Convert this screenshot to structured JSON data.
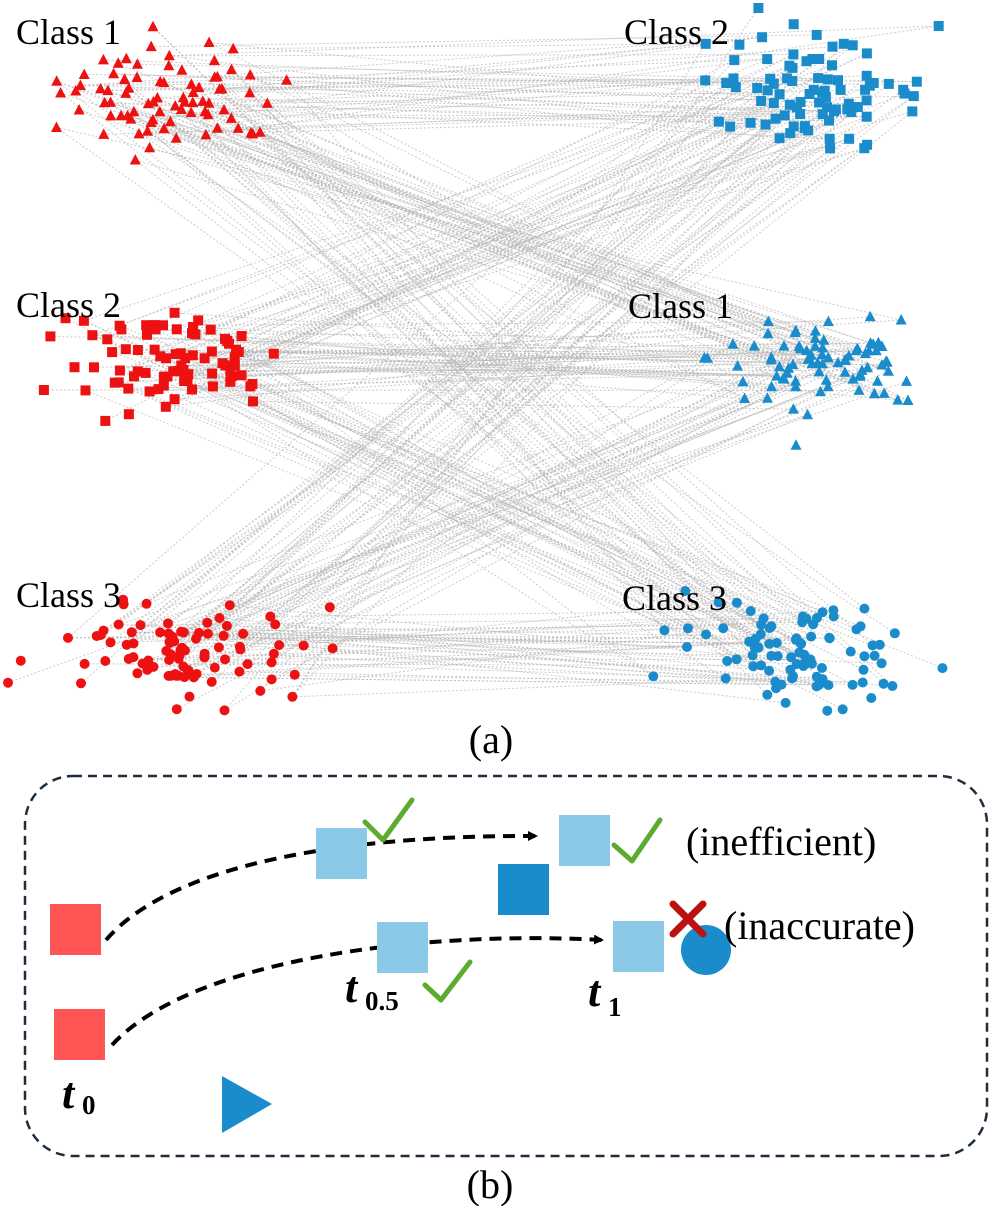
{
  "panel_a": {
    "caption": "(a)",
    "groups": [
      {
        "label": "Class 1",
        "side": "left",
        "marker": "triangle",
        "color": "#ee1111",
        "role": "source"
      },
      {
        "label": "Class 2",
        "side": "left",
        "marker": "square",
        "color": "#ee1111",
        "role": "source"
      },
      {
        "label": "Class 3",
        "side": "left",
        "marker": "circle",
        "color": "#ee1111",
        "role": "source"
      },
      {
        "label": "Class 2",
        "side": "right",
        "marker": "square",
        "color": "#1a8ccc",
        "role": "target"
      },
      {
        "label": "Class 1",
        "side": "right",
        "marker": "triangle",
        "color": "#1a8ccc",
        "role": "target"
      },
      {
        "label": "Class 3",
        "side": "right",
        "marker": "circle",
        "color": "#1a8ccc",
        "role": "target"
      }
    ],
    "link_color": "#b5b5b5"
  },
  "panel_b": {
    "caption": "(b)",
    "labels": {
      "inefficient": "(inefficient)",
      "inaccurate": "(inaccurate)",
      "t0_base": "t",
      "t0_sub": "0",
      "t05_base": "t",
      "t05_sub": "0.5",
      "t1_base": "t",
      "t1_sub": "1"
    },
    "colors": {
      "source": "#ff5555",
      "intermediate": "#8cc8e8",
      "target": "#1a8ccc",
      "check": "#5aab2e",
      "cross": "#bb1111",
      "frame": "#1e2e3e"
    }
  }
}
